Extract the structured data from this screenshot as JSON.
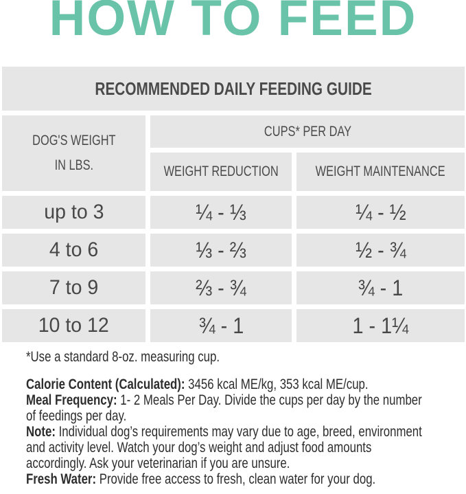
{
  "page": {
    "title": "HOW TO FEED"
  },
  "colors": {
    "accent_teal": "#68c3a9",
    "cell_background": "#e7e6e6",
    "table_text": "#4a4a4a",
    "body_text": "#2d2d2d"
  },
  "feeding_table": {
    "header": "RECOMMENDED DAILY FEEDING GUIDE",
    "weight_column": {
      "line1": "DOG'S WEIGHT",
      "line2": "IN LBS."
    },
    "cups_header": "CUPS* PER DAY",
    "sub_columns": [
      "WEIGHT REDUCTION",
      "WEIGHT MAINTENANCE"
    ],
    "rows": [
      {
        "weight": "up to 3",
        "reduction": "¼ - ⅓",
        "maintenance": "¼ - ½"
      },
      {
        "weight": "4 to 6",
        "reduction": "⅓ - ⅔",
        "maintenance": "½ - ¾"
      },
      {
        "weight": "7 to 9",
        "reduction": "⅔ - ¾",
        "maintenance": "¾ - 1"
      },
      {
        "weight": "10 to 12",
        "reduction": "¾ - 1",
        "maintenance": "1 - 1¼"
      }
    ],
    "footnote": "*Use a standard 8-oz. measuring cup."
  },
  "info": {
    "lines": [
      {
        "bold": "Calorie Content (Calculated):",
        "text": "3456 kcal ME/kg, 353 kcal ME/cup."
      },
      {
        "bold": "Meal Frequency:",
        "text": "1- 2 Meals Per Day. Divide the cups per day by the number"
      },
      {
        "bold": "",
        "text": "of feedings per day."
      },
      {
        "bold": "Note:",
        "text": "Individual dog’s requirements may vary due to age, breed, environment"
      },
      {
        "bold": "",
        "text": "and activity level. Watch your dog’s weight and adjust food amounts"
      },
      {
        "bold": "",
        "text": "accordingly.  Ask your veterinarian if you are unsure."
      },
      {
        "bold": "Fresh Water:",
        "text": "Provide free access to fresh, clean water for your dog."
      }
    ]
  }
}
